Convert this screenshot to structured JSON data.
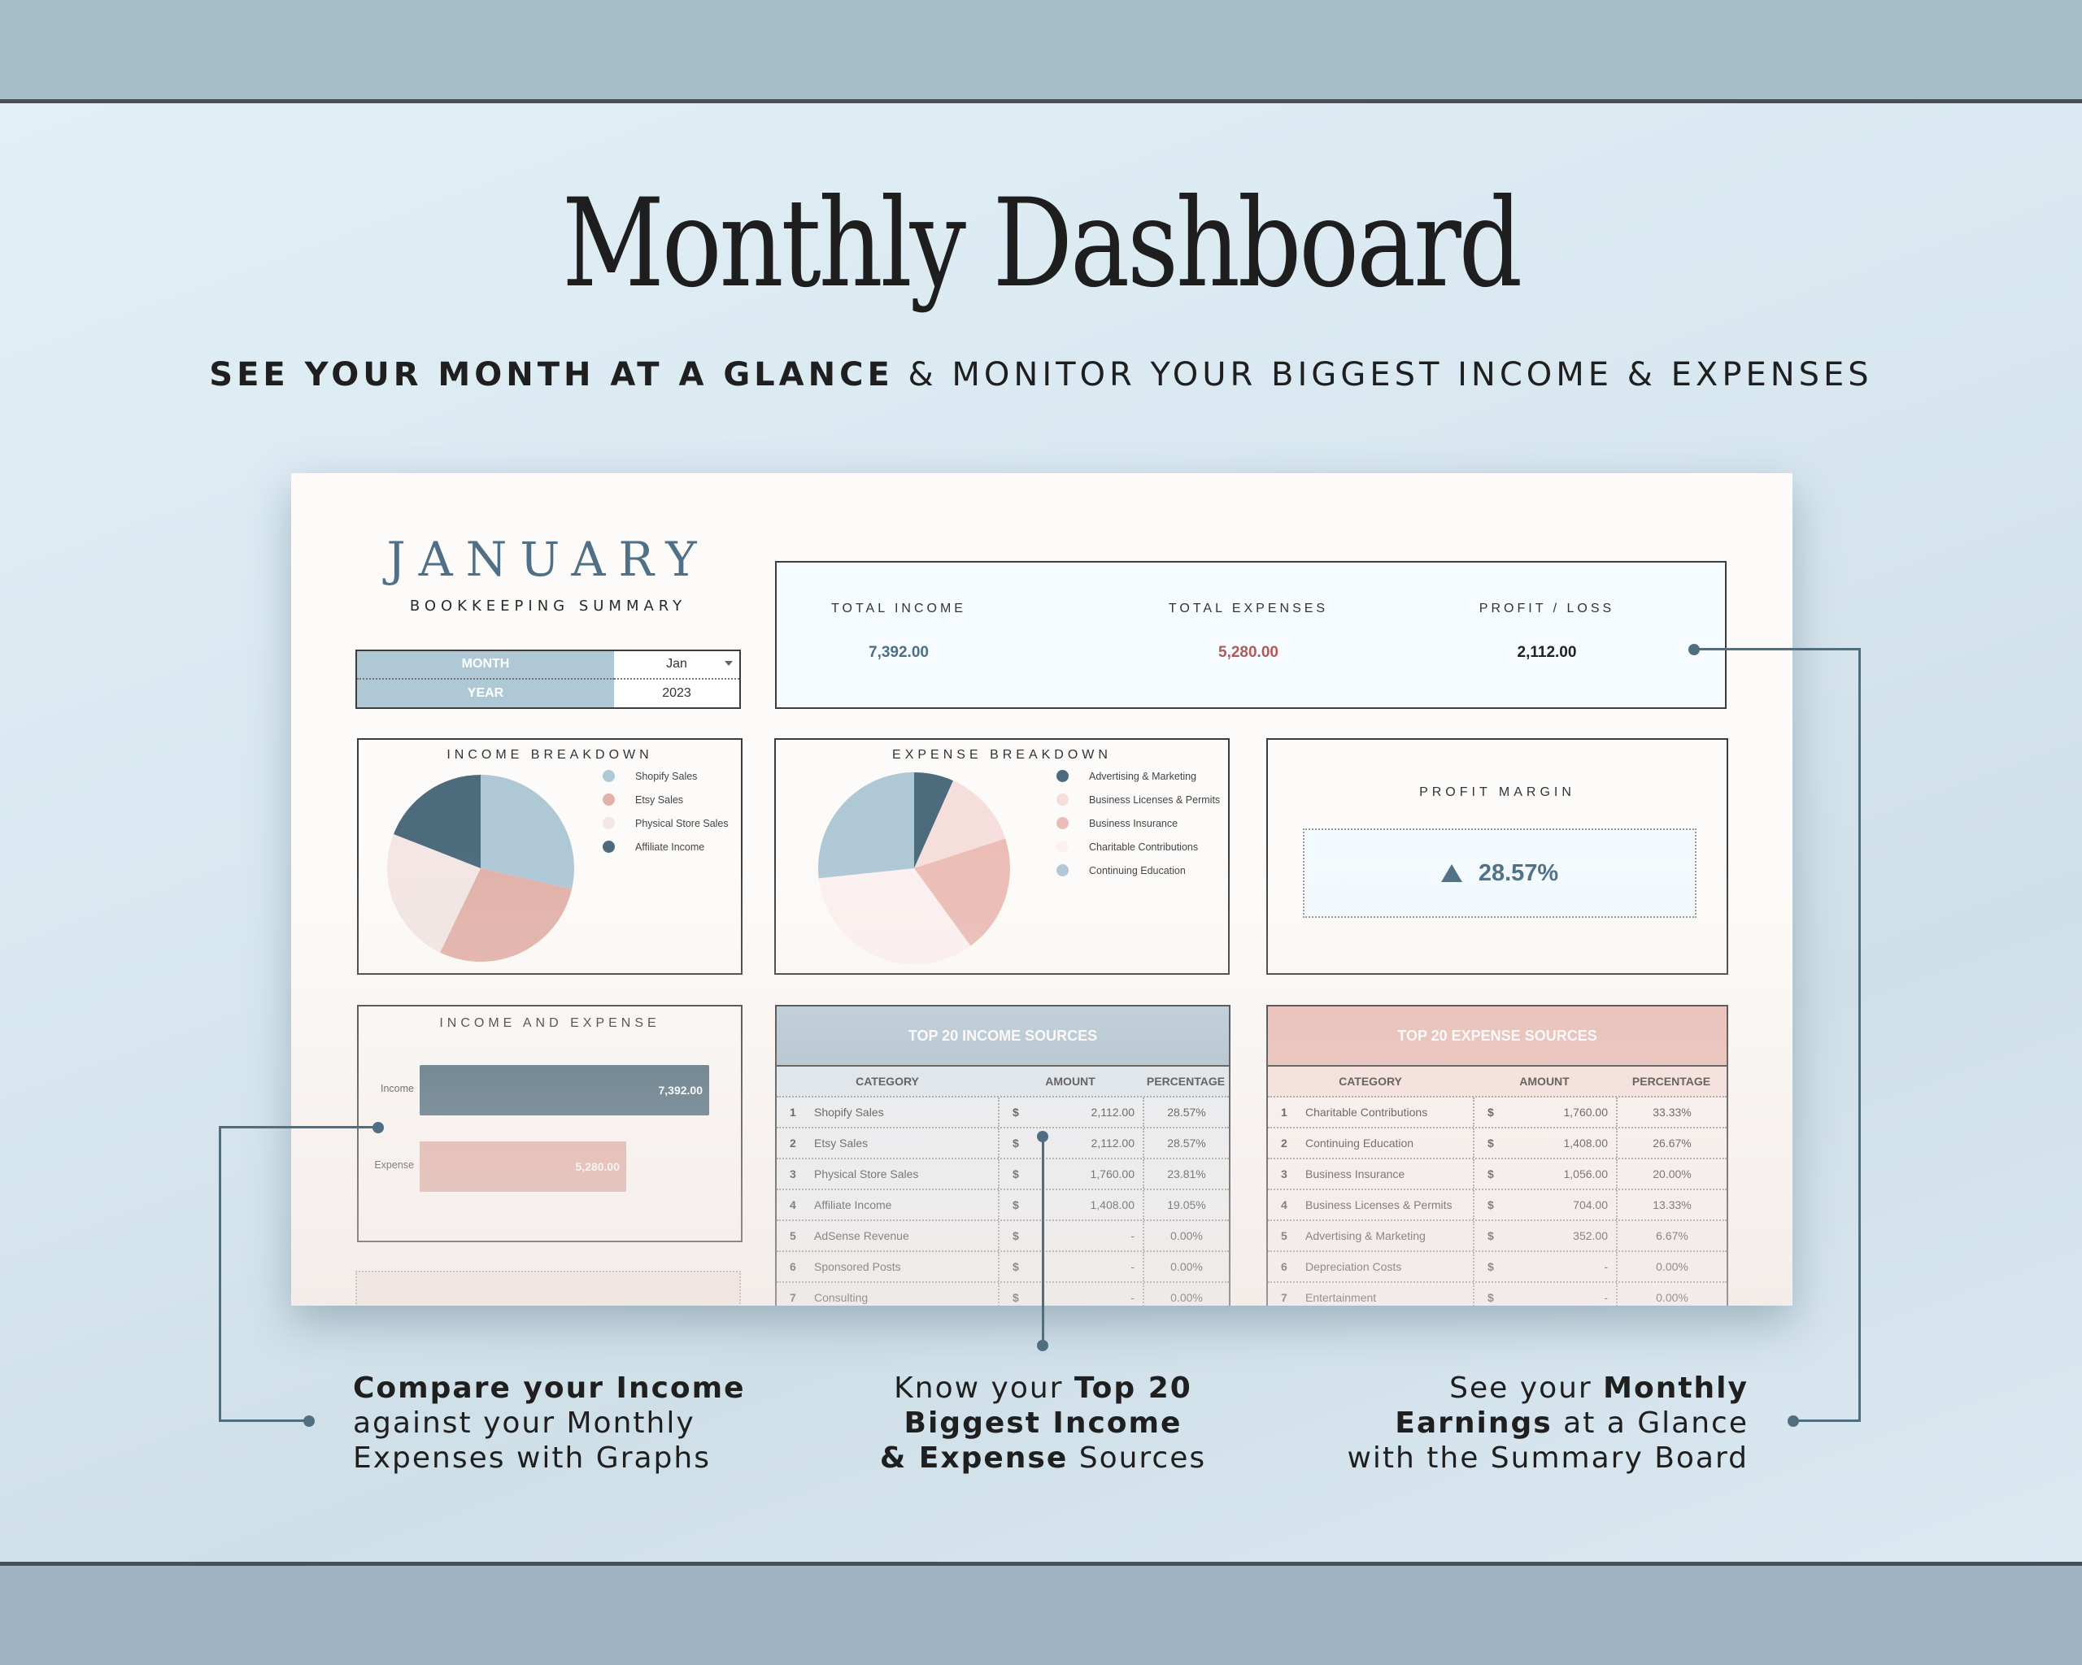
{
  "hero": {
    "title": "Monthly Dashboard",
    "subtitle_bold": "SEE YOUR MONTH AT A GLANCE",
    "subtitle_rest": " & MONITOR YOUR BIGGEST INCOME & EXPENSES"
  },
  "dashboard": {
    "month_title": "JANUARY",
    "subtitle": "BOOKKEEPING SUMMARY",
    "selector": {
      "month_label": "MONTH",
      "month_value": "Jan",
      "year_label": "YEAR",
      "year_value": "2023"
    },
    "summary": {
      "total_income_label": "TOTAL INCOME",
      "total_income_value": "7,392.00",
      "total_expenses_label": "TOTAL EXPENSES",
      "total_expenses_value": "5,280.00",
      "profit_loss_label": "PROFIT / LOSS",
      "profit_loss_value": "2,112.00"
    },
    "income_breakdown_title": "INCOME BREAKDOWN",
    "expense_breakdown_title": "EXPENSE BREAKDOWN",
    "profit_margin": {
      "title": "PROFIT MARGIN",
      "value": "28.57%",
      "indicator": "triangle-up"
    },
    "income_expense_title": "INCOME AND EXPENSE",
    "income_table": {
      "title": "TOP 20 INCOME SOURCES",
      "headers": [
        "CATEGORY",
        "AMOUNT",
        "PERCENTAGE"
      ],
      "rows": [
        {
          "n": "1",
          "category": "Shopify Sales",
          "currency": "$",
          "amount": "2,112.00",
          "pct": "28.57%"
        },
        {
          "n": "2",
          "category": "Etsy Sales",
          "currency": "$",
          "amount": "2,112.00",
          "pct": "28.57%"
        },
        {
          "n": "3",
          "category": "Physical Store Sales",
          "currency": "$",
          "amount": "1,760.00",
          "pct": "23.81%"
        },
        {
          "n": "4",
          "category": "Affiliate Income",
          "currency": "$",
          "amount": "1,408.00",
          "pct": "19.05%"
        },
        {
          "n": "5",
          "category": "AdSense Revenue",
          "currency": "$",
          "amount": "-",
          "pct": "0.00%"
        },
        {
          "n": "6",
          "category": "Sponsored Posts",
          "currency": "$",
          "amount": "-",
          "pct": "0.00%"
        },
        {
          "n": "7",
          "category": "Consulting",
          "currency": "$",
          "amount": "-",
          "pct": "0.00%"
        }
      ]
    },
    "expense_table": {
      "title": "TOP 20 EXPENSE SOURCES",
      "headers": [
        "CATEGORY",
        "AMOUNT",
        "PERCENTAGE"
      ],
      "rows": [
        {
          "n": "1",
          "category": "Charitable Contributions",
          "currency": "$",
          "amount": "1,760.00",
          "pct": "33.33%"
        },
        {
          "n": "2",
          "category": "Continuing Education",
          "currency": "$",
          "amount": "1,408.00",
          "pct": "26.67%"
        },
        {
          "n": "3",
          "category": "Business Insurance",
          "currency": "$",
          "amount": "1,056.00",
          "pct": "20.00%"
        },
        {
          "n": "4",
          "category": "Business Licenses & Permits",
          "currency": "$",
          "amount": "704.00",
          "pct": "13.33%"
        },
        {
          "n": "5",
          "category": "Advertising & Marketing",
          "currency": "$",
          "amount": "352.00",
          "pct": "6.67%"
        },
        {
          "n": "6",
          "category": "Depreciation Costs",
          "currency": "$",
          "amount": "-",
          "pct": "0.00%"
        },
        {
          "n": "7",
          "category": "Entertainment",
          "currency": "$",
          "amount": "-",
          "pct": "0.00%"
        }
      ]
    }
  },
  "callouts": {
    "left": {
      "bold": "Compare your Income",
      "rest1": "against your Monthly",
      "rest2": "Expenses with Graphs"
    },
    "center": {
      "pre": "Know your ",
      "bold1": "Top 20",
      "bold2": "Biggest Income",
      "bold3": "& Expense",
      "post": " Sources"
    },
    "right": {
      "pre": "See your ",
      "bold1": "Monthly",
      "bold2": "Earnings",
      "mid": " at a Glance",
      "rest": "with the Summary Board"
    }
  },
  "colors": {
    "accent_blue": "#4d6f84",
    "dark_slate": "#4c6b7c",
    "light_blue": "#aec8d6",
    "salmon": "#e2b1a8",
    "light_pink": "#f3dcd8",
    "blush": "#f6eceb",
    "expense_red": "#b05a5a"
  },
  "chart_data": [
    {
      "type": "pie",
      "title": "INCOME BREAKDOWN",
      "categories": [
        "Shopify Sales",
        "Etsy Sales",
        "Physical Store Sales",
        "Affiliate Income"
      ],
      "values": [
        2112,
        2112,
        1760,
        1408
      ],
      "percentages": [
        28.57,
        28.57,
        23.81,
        19.05
      ],
      "colors": [
        "#aec8d6",
        "#e2b1a8",
        "#f3e6e4",
        "#4c6b7c"
      ],
      "legend_position": "right"
    },
    {
      "type": "pie",
      "title": "EXPENSE BREAKDOWN",
      "categories": [
        "Advertising & Marketing",
        "Business Licenses & Permits",
        "Business Insurance",
        "Charitable Contributions",
        "Continuing Education"
      ],
      "values": [
        352,
        704,
        1056,
        1760,
        1408
      ],
      "percentages": [
        6.67,
        13.33,
        20.0,
        33.33,
        26.67
      ],
      "colors": [
        "#4c6b7c",
        "#f5dedb",
        "#ebbdb6",
        "#fcf1f0",
        "#aec8d6"
      ],
      "legend_position": "right"
    },
    {
      "type": "bar",
      "orientation": "horizontal",
      "title": "INCOME AND EXPENSE",
      "categories": [
        "Income",
        "Expense"
      ],
      "values": [
        7392.0,
        5280.0
      ],
      "labels": [
        "7,392.00",
        "5,280.00"
      ],
      "colors": [
        "#4c6b7c",
        "#e2b1a8"
      ],
      "xlim": [
        0,
        7392
      ]
    }
  ]
}
